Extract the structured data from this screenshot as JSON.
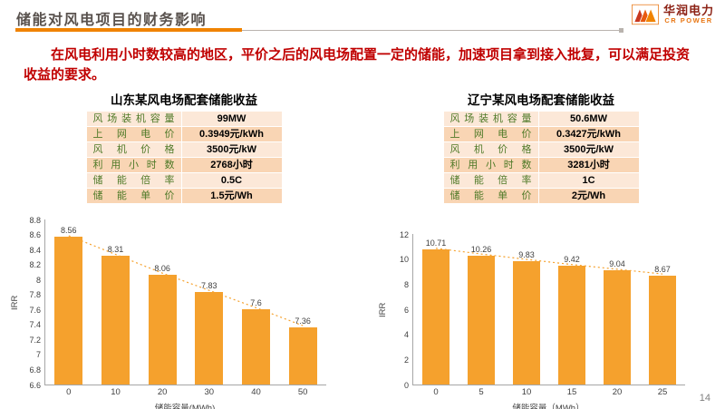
{
  "header": {
    "title": "储能对风电项目的财务影响",
    "logo_name": "华润电力",
    "logo_sub": "CR POWER"
  },
  "intro": "在风电利用小时数较高的地区，平价之后的风电场配置一定的储能，加速项目拿到接入批复，可以满足投资收益的要求。",
  "page_number": "14",
  "colors": {
    "accent_orange": "#F08300",
    "bar_orange": "#F5A12D",
    "intro_red": "#C00000",
    "table_label_green": "#4F7A28",
    "logo_red": "#8D2316"
  },
  "panels": [
    {
      "title": "山东某风电场配套储能收益",
      "table": [
        [
          "风场装机容量",
          "99MW"
        ],
        [
          "上网电价",
          "0.3949元/kWh"
        ],
        [
          "风机价格",
          "3500元/kW"
        ],
        [
          "利用小时数",
          "2768小时"
        ],
        [
          "储能倍率",
          "0.5C"
        ],
        [
          "储能单价",
          "1.5元/Wh"
        ]
      ]
    },
    {
      "title": "辽宁某风电场配套储能收益",
      "table": [
        [
          "风场装机容量",
          "50.6MW"
        ],
        [
          "上网电价",
          "0.3427元/kWh"
        ],
        [
          "风机价格",
          "3500元/kW"
        ],
        [
          "利用小时数",
          "3281小时"
        ],
        [
          "储能倍率",
          "1C"
        ],
        [
          "储能单价",
          "2元/Wh"
        ]
      ]
    }
  ],
  "chart_data": [
    {
      "type": "bar",
      "title": "山东某风电场配套储能收益",
      "categories": [
        "0",
        "10",
        "20",
        "30",
        "40",
        "50"
      ],
      "values": [
        8.56,
        8.31,
        8.06,
        7.83,
        7.6,
        7.36
      ],
      "xlabel": "储能容量(MWh)",
      "ylabel": "IRR",
      "ylim": [
        6.6,
        8.8
      ],
      "ytick_step": 0.2,
      "bar_color": "#F5A12D",
      "line_color": "#F5A12D",
      "trendline": true,
      "grid": false,
      "legend": false
    },
    {
      "type": "bar",
      "title": "辽宁某风电场配套储能收益",
      "categories": [
        "0",
        "5",
        "10",
        "15",
        "20",
        "25"
      ],
      "values": [
        10.71,
        10.26,
        9.83,
        9.42,
        9.04,
        8.67
      ],
      "xlabel": "储能容量（MWh）",
      "ylabel": "IRR",
      "ylim": [
        0,
        12
      ],
      "ytick_step": 2,
      "bar_color": "#F5A12D",
      "line_color": "#F5A12D",
      "trendline": true,
      "grid": false,
      "legend": false
    }
  ]
}
